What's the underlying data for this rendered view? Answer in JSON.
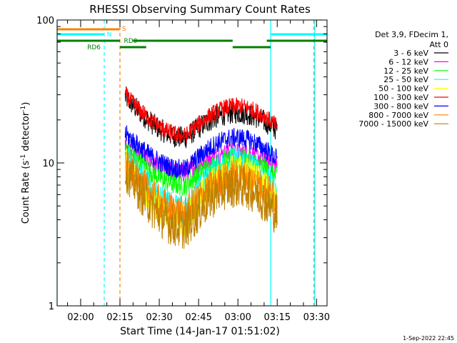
{
  "chart_data": {
    "type": "line",
    "title": "RHESSI Observing Summary Count Rates",
    "xlabel": "Start Time (14-Jan-17 01:51:02)",
    "ylabel": "Count Rate (s",
    "ylabel_sup": "-1",
    "ylabel_tail": " detector",
    "ylabel_end": ")",
    "y_scale": "log",
    "ylim": [
      1,
      100
    ],
    "y_ticks": [
      "1",
      "10",
      "100"
    ],
    "xlim_minutes_after_0200": [
      -8.97,
      94.0
    ],
    "x_ticks": [
      {
        "label": "02:00",
        "minutes": 0
      },
      {
        "label": "02:15",
        "minutes": 15
      },
      {
        "label": "02:30",
        "minutes": 30
      },
      {
        "label": "02:45",
        "minutes": 45
      },
      {
        "label": "03:00",
        "minutes": 60
      },
      {
        "label": "03:15",
        "minutes": 75
      },
      {
        "label": "03:30",
        "minutes": 90
      }
    ],
    "legend_placement": "right",
    "legend_header": [
      "Det 3,9, FDecim 1,",
      "Att 0"
    ],
    "series": [
      {
        "name": "3 - 6 keV",
        "color": "#000000",
        "start": 29.0,
        "min": 15.0,
        "end": 18.0,
        "noise": 0.08
      },
      {
        "name": "6 - 12 keV",
        "color": "#ff00ff",
        "start": 14.0,
        "min": 8.5,
        "end": 9.5,
        "noise": 0.07
      },
      {
        "name": "12 - 25 keV",
        "color": "#00ff00",
        "start": 12.5,
        "min": 7.0,
        "end": 8.5,
        "noise": 0.08
      },
      {
        "name": "25 - 50 keV",
        "color": "#00ffff",
        "start": 11.5,
        "min": 4.5,
        "end": 8.0,
        "noise": 0.12
      },
      {
        "name": "50 - 100 keV",
        "color": "#ffff00",
        "start": 10.0,
        "min": 4.0,
        "end": 7.0,
        "noise": 0.12
      },
      {
        "name": "100 - 300 keV",
        "color": "#ff0000",
        "start": 30.0,
        "min": 15.5,
        "end": 20.0,
        "noise": 0.06
      },
      {
        "name": "300 - 800 keV",
        "color": "#0000ff",
        "start": 16.0,
        "min": 9.0,
        "end": 12.0,
        "noise": 0.07
      },
      {
        "name": "800 - 7000 keV",
        "color": "#ff8000",
        "start": 10.0,
        "min": 4.5,
        "end": 6.5,
        "noise": 0.12
      },
      {
        "name": "7000 - 15000 keV",
        "color": "#c08000",
        "start": 9.0,
        "min": 3.5,
        "end": 5.5,
        "noise": 0.15
      }
    ],
    "series_time_range_minutes": [
      17.0,
      75.0
    ],
    "series_minimum_minutes": 40.0,
    "orbit_flags": [
      {
        "label": "S",
        "color": "#ff8000",
        "value": 85,
        "segments": [
          [
            -8.97,
            14.8
          ]
        ]
      },
      {
        "label": "N",
        "color": "#00ffff",
        "segments": [
          [
            -8.97,
            9.0
          ],
          [
            72.5,
            94.0
          ]
        ],
        "value": 77
      },
      {
        "label": "RD0",
        "color": "#008000",
        "segments": [
          [
            -8.97,
            15.0
          ],
          [
            20.0,
            58.0
          ],
          [
            71.0,
            94.0
          ]
        ],
        "value": 70
      },
      {
        "label": "RD6",
        "color": "#008000",
        "segments": [
          [
            15.0,
            25.0
          ],
          [
            58.0,
            72.5
          ]
        ],
        "value": 65
      }
    ],
    "flag_label_color": {
      "S": "#ff8000",
      "N": "#00ffff",
      "RD0": "#008000",
      "RD6": "#008000"
    },
    "vertical_markers": [
      {
        "minutes": 9.0,
        "color": "#00ffff",
        "style": "dashed"
      },
      {
        "minutes": 15.0,
        "color": "#ff8000",
        "style": "dashed"
      },
      {
        "minutes": 72.5,
        "color": "#00ffff",
        "style": "solid"
      },
      {
        "minutes": 89.0,
        "color": "#ff8000",
        "style": "dashed"
      },
      {
        "minutes": 89.3,
        "color": "#00ffff",
        "style": "solid"
      },
      {
        "minutes": -8.97,
        "color": "#00ffff",
        "style": "solid"
      }
    ],
    "footer": "1-Sep-2022 22:45"
  }
}
